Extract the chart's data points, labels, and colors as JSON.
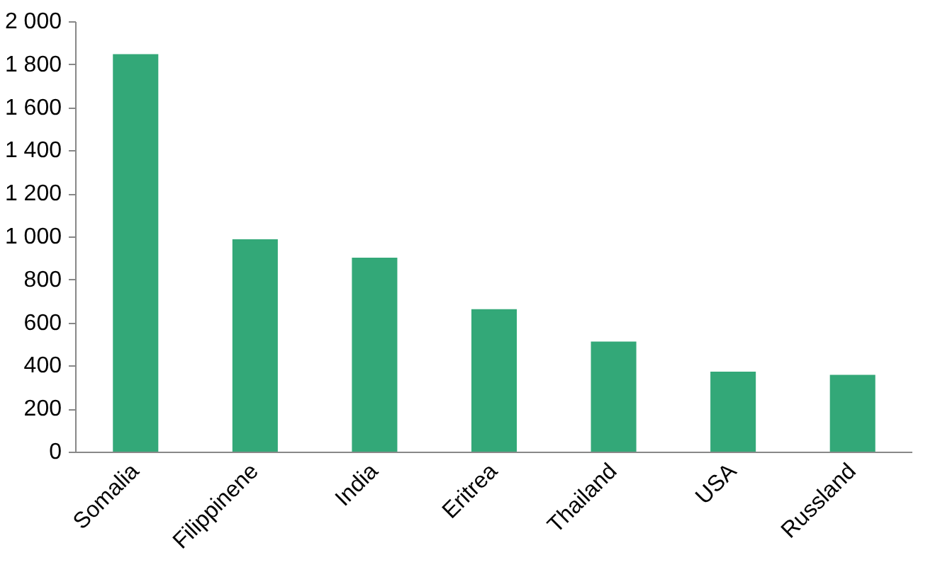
{
  "chart_data": {
    "type": "bar",
    "categories": [
      "Somalia",
      "Filippinene",
      "India",
      "Eritrea",
      "Thailand",
      "USA",
      "Russland"
    ],
    "values": [
      1850,
      990,
      905,
      665,
      515,
      375,
      360
    ],
    "color": "#33a878",
    "ylim": [
      0,
      2000
    ],
    "yticks": [
      0,
      200,
      400,
      600,
      800,
      {
        "value": 1000,
        "label": "1 000"
      },
      {
        "value": 1200,
        "label": "1 200"
      },
      {
        "value": 1400,
        "label": "1 400"
      },
      {
        "value": 1600,
        "label": "1 600"
      },
      {
        "value": 1800,
        "label": "1 800"
      },
      {
        "value": 2000,
        "label": "2 000"
      }
    ],
    "grid": false
  }
}
